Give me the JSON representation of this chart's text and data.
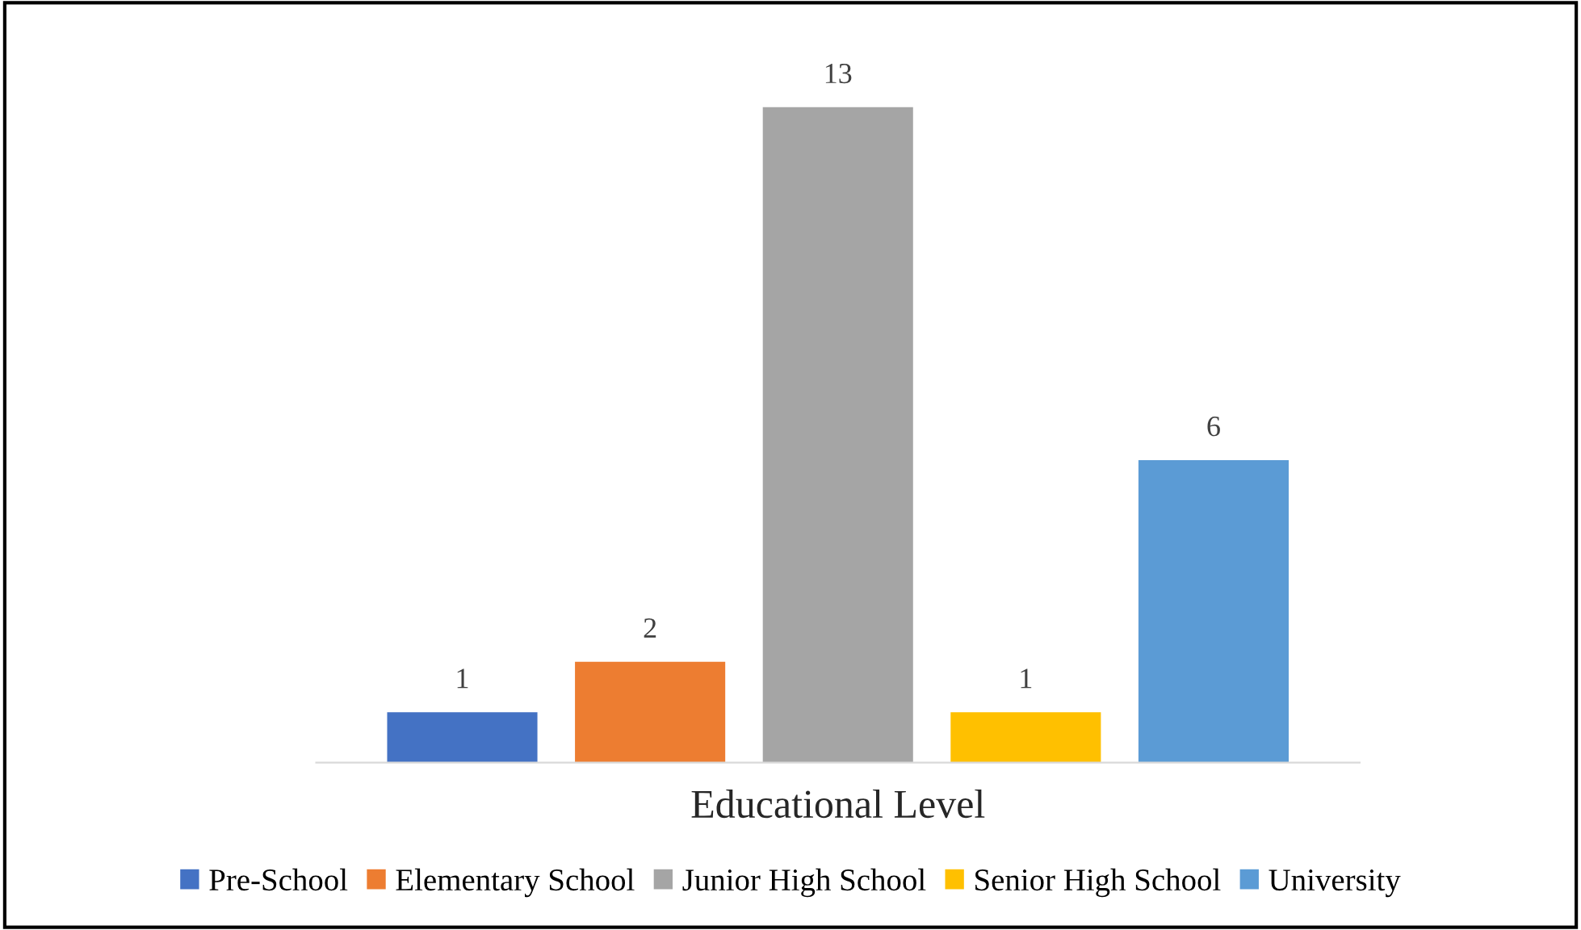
{
  "chart_data": {
    "type": "bar",
    "xlabel": "Educational Level",
    "categories": [
      null
    ],
    "series": [
      {
        "name": "Pre-School",
        "color": "#4472c4",
        "values": [
          1
        ]
      },
      {
        "name": "Elementary School",
        "color": "#ed7d31",
        "values": [
          2
        ]
      },
      {
        "name": "Junior High School",
        "color": "#a5a5a5",
        "values": [
          13
        ]
      },
      {
        "name": "Senior High School",
        "color": "#ffc000",
        "values": [
          1
        ]
      },
      {
        "name": "University",
        "color": "#5b9bd5",
        "values": [
          6
        ]
      }
    ],
    "data_labels": true,
    "legend": "bottom",
    "grid": false,
    "tick_labels": false
  }
}
